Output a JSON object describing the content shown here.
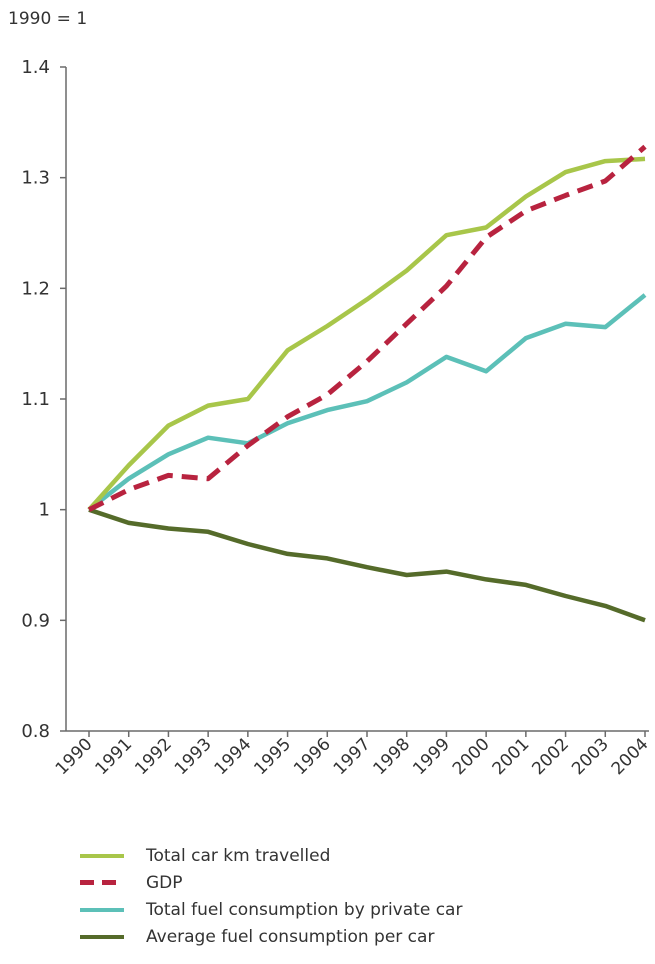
{
  "chart_data": {
    "type": "line",
    "unit_label": "1990 = 1",
    "x": [
      "1990",
      "1991",
      "1992",
      "1993",
      "1994",
      "1995",
      "1996",
      "1997",
      "1998",
      "1999",
      "2000",
      "2001",
      "2002",
      "2003",
      "2004"
    ],
    "ylim": [
      0.8,
      1.4
    ],
    "yticks": [
      "0.8",
      "0.9",
      "1",
      "1.1",
      "1.2",
      "1.3",
      "1.4"
    ],
    "grid": false,
    "legend_position": "bottom",
    "series": [
      {
        "name": "Total car km travelled",
        "color": "#a8c64a",
        "style": "solid",
        "values": [
          1.0,
          1.04,
          1.076,
          1.094,
          1.1,
          1.144,
          1.166,
          1.19,
          1.216,
          1.248,
          1.255,
          1.283,
          1.305,
          1.315,
          1.317
        ]
      },
      {
        "name": "GDP",
        "color": "#b8233f",
        "style": "dashed",
        "values": [
          1.0,
          1.018,
          1.031,
          1.028,
          1.058,
          1.084,
          1.104,
          1.134,
          1.168,
          1.202,
          1.246,
          1.27,
          1.284,
          1.297,
          1.328
        ]
      },
      {
        "name": "Total fuel consumption by private car",
        "color": "#5cc0b8",
        "style": "solid",
        "values": [
          1.0,
          1.028,
          1.05,
          1.065,
          1.06,
          1.078,
          1.09,
          1.098,
          1.115,
          1.138,
          1.125,
          1.155,
          1.168,
          1.165,
          1.194
        ]
      },
      {
        "name": "Average fuel consumption per car",
        "color": "#556b2a",
        "style": "solid",
        "values": [
          1.0,
          0.988,
          0.983,
          0.98,
          0.969,
          0.96,
          0.956,
          0.948,
          0.941,
          0.944,
          0.937,
          0.932,
          0.922,
          0.913,
          0.9
        ]
      }
    ]
  }
}
